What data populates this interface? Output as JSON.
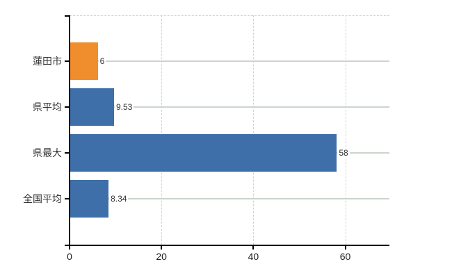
{
  "chart_data": {
    "type": "bar",
    "orientation": "horizontal",
    "title": "",
    "xlabel": "",
    "ylabel": "",
    "categories": [
      "蓮田市",
      "県平均",
      "県最大",
      "全国平均"
    ],
    "values": [
      6,
      9.53,
      58,
      8.34
    ],
    "value_labels": [
      "6",
      "9.53",
      "58",
      "8.34"
    ],
    "bar_colors": [
      "#f08e2e",
      "#3e6fa8",
      "#3e6fa8",
      "#3e6fa8"
    ],
    "xlim": [
      0,
      69.6
    ],
    "x_ticks": [
      0,
      20,
      40,
      60
    ],
    "x_tick_labels": [
      "0",
      "20",
      "40",
      "60"
    ],
    "grid": {
      "vertical": "dashed",
      "horizontal": "solid",
      "top_border": "dashed"
    },
    "legend": "none",
    "colors": {
      "highlight_bar": "#f08e2e",
      "default_bar": "#3e6fa8",
      "axis": "#000000",
      "label_text": "#333333",
      "tick_text": "#1a1a1a",
      "grid_solid": "#ccd4cc",
      "grid_dashed": "#d6d0d6",
      "background": "#ffffff"
    }
  }
}
